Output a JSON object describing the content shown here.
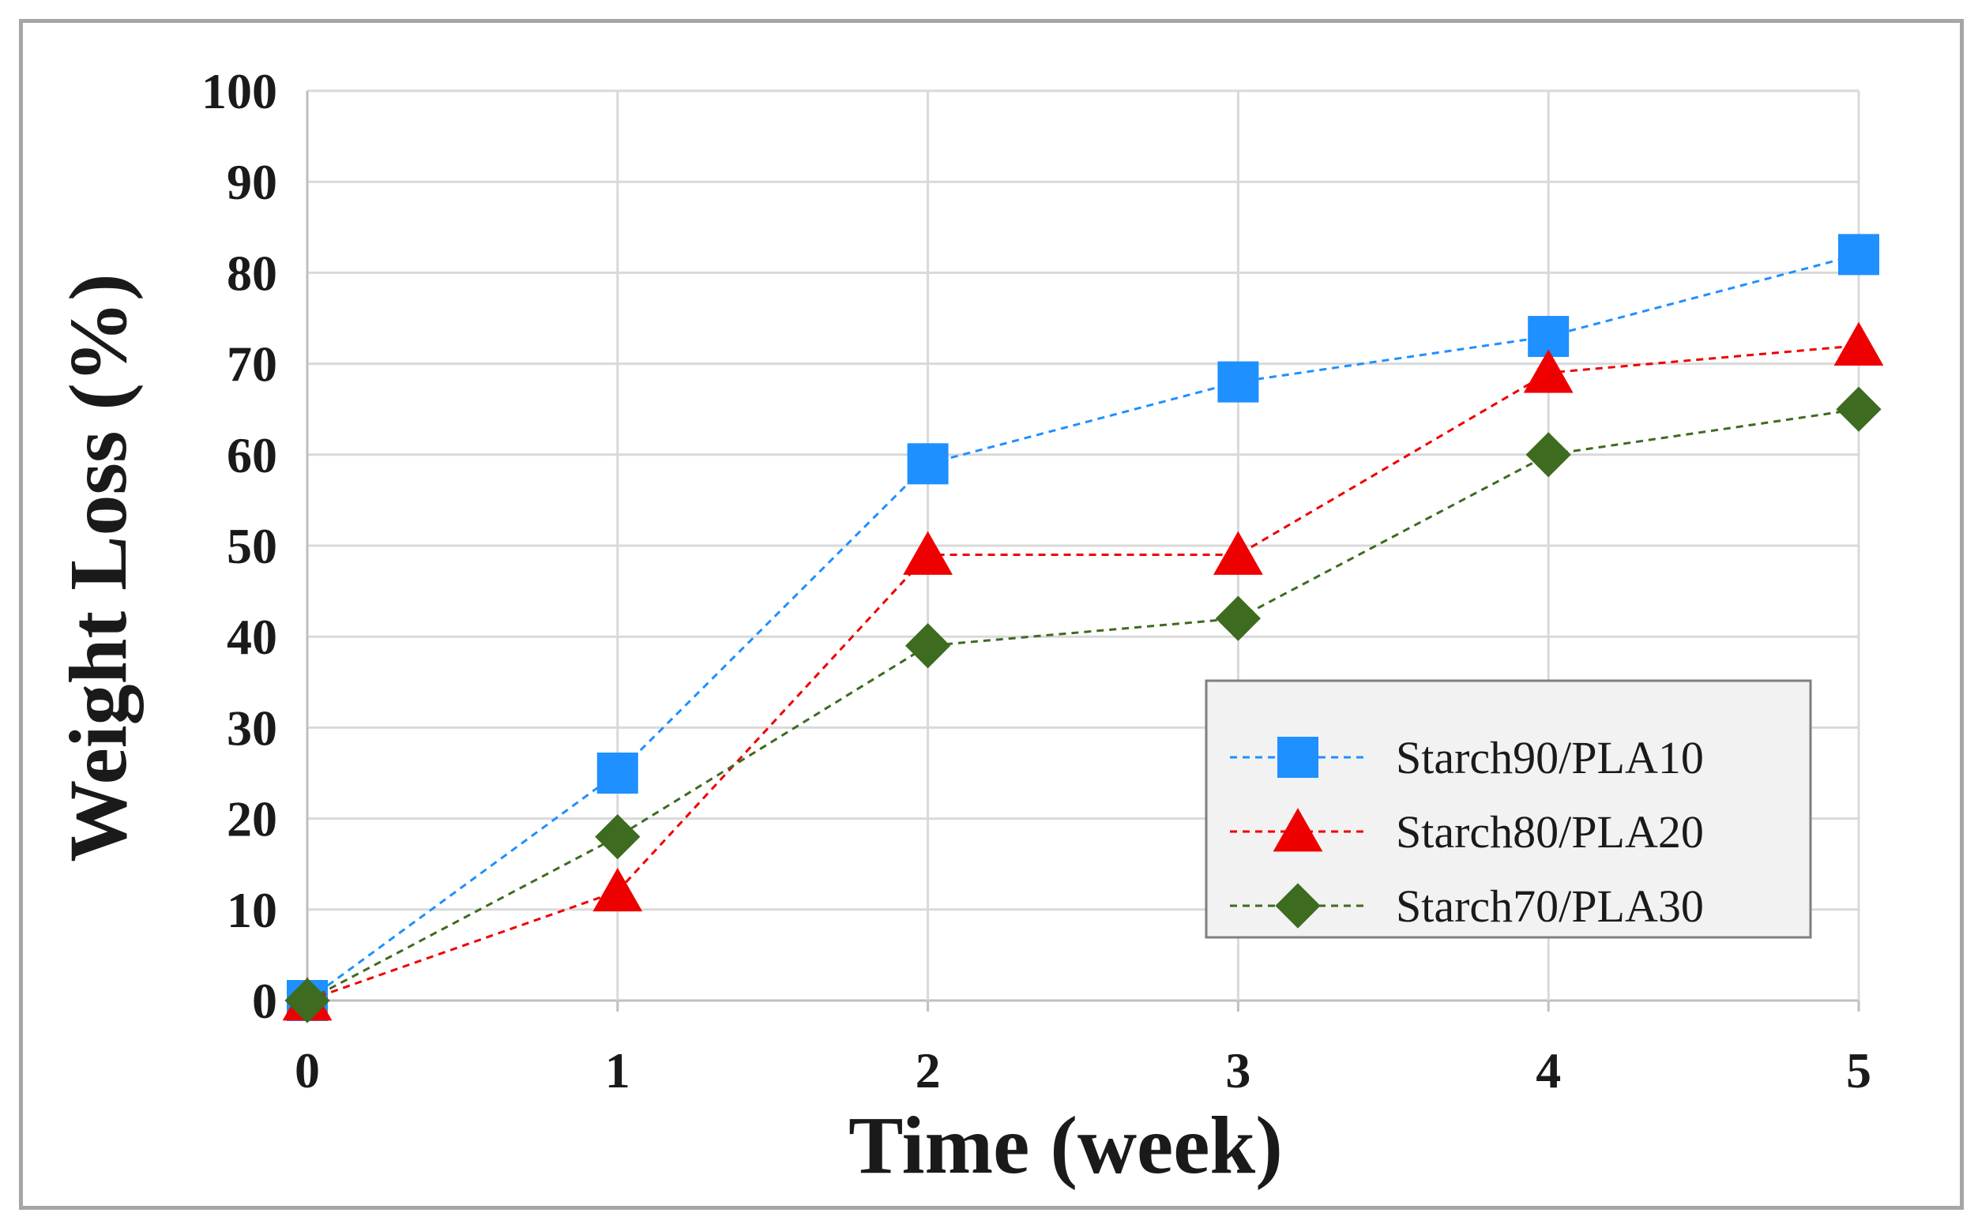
{
  "chart_data": {
    "type": "line",
    "title": "",
    "xlabel": "Time (week)",
    "ylabel": "Weight Loss (%)",
    "x": [
      0,
      1,
      2,
      3,
      4,
      5
    ],
    "x_tick_labels": [
      "0",
      "1",
      "2",
      "3",
      "4",
      "5"
    ],
    "y_tick_labels": [
      "0",
      "10",
      "20",
      "30",
      "40",
      "50",
      "60",
      "70",
      "80",
      "90",
      "100"
    ],
    "xlim": [
      0,
      5
    ],
    "ylim": [
      0,
      100
    ],
    "grid": true,
    "legend_position": "bottom-right",
    "series": [
      {
        "name": "Starch90/PLA10",
        "marker": "square",
        "color": "#1e90ff",
        "values": [
          0,
          25,
          59,
          68,
          73,
          82
        ]
      },
      {
        "name": "Starch80/PLA20",
        "marker": "triangle",
        "color": "#ee0000",
        "values": [
          0,
          12,
          49,
          49,
          69,
          72
        ]
      },
      {
        "name": "Starch70/PLA30",
        "marker": "diamond",
        "color": "#3d6b1f",
        "values": [
          0,
          18,
          39,
          42,
          60,
          65
        ]
      }
    ]
  }
}
